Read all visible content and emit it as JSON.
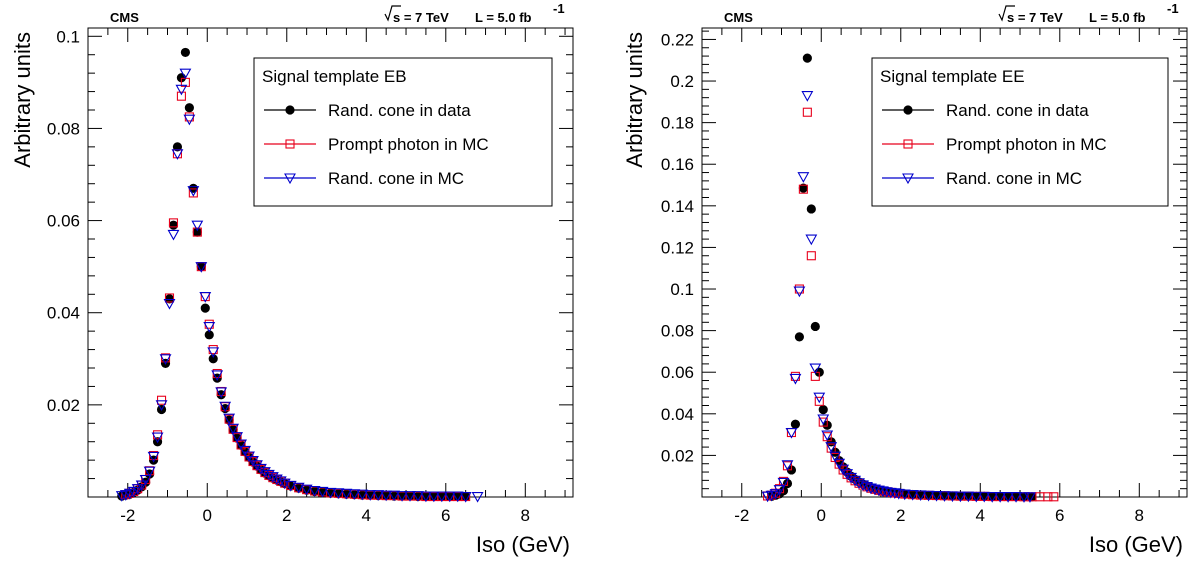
{
  "chart_data": [
    {
      "type": "scatter",
      "experiment_label": "CMS",
      "energy_label": "s = 7 TeV",
      "lumi_label": "L = 5.0 fb",
      "lumi_exponent": "-1",
      "xlabel": "Iso (GeV)",
      "ylabel": "Arbitrary units",
      "xlim": [
        -3,
        9.2
      ],
      "ylim": [
        0,
        0.1018
      ],
      "xticks": [
        -2,
        0,
        2,
        4,
        6,
        8
      ],
      "yticks": [
        0.02,
        0.04,
        0.06,
        0.08,
        0.1
      ],
      "ytick_labels": [
        "0.02",
        "0.04",
        "0.06",
        "0.08",
        "0.1"
      ],
      "xtick_labels": [
        "-2",
        "0",
        "2",
        "4",
        "6",
        "8"
      ],
      "legend_title": "Signal template EB",
      "legend_position": "top-right",
      "series": [
        {
          "name": "Rand. cone in data",
          "marker": "circle",
          "color": "#000000",
          "x": [
            -2.15,
            -2.05,
            -1.95,
            -1.85,
            -1.75,
            -1.65,
            -1.55,
            -1.45,
            -1.35,
            -1.25,
            -1.15,
            -1.05,
            -0.95,
            -0.85,
            -0.75,
            -0.65,
            -0.55,
            -0.45,
            -0.35,
            -0.25,
            -0.15,
            -0.05,
            0.05,
            0.15,
            0.25,
            0.35,
            0.45,
            0.55,
            0.65,
            0.75,
            0.85,
            0.95,
            1.05,
            1.15,
            1.25,
            1.35,
            1.45,
            1.55,
            1.65,
            1.75,
            1.85,
            1.95,
            2.1,
            2.3,
            2.5,
            2.7,
            2.9,
            3.1,
            3.3,
            3.5,
            3.7,
            3.9,
            4.1,
            4.3,
            4.5,
            4.7,
            4.9,
            5.1,
            5.3,
            5.5,
            5.7,
            5.9,
            6.1,
            6.3,
            6.5
          ],
          "y": [
            0.0002,
            0.0004,
            0.0006,
            0.001,
            0.0015,
            0.0022,
            0.0032,
            0.005,
            0.008,
            0.012,
            0.019,
            0.029,
            0.043,
            0.059,
            0.076,
            0.091,
            0.0965,
            0.0845,
            0.067,
            0.0575,
            0.05,
            0.041,
            0.0352,
            0.03,
            0.0258,
            0.0222,
            0.0192,
            0.0167,
            0.0146,
            0.0128,
            0.0112,
            0.0098,
            0.0086,
            0.0076,
            0.0067,
            0.0059,
            0.0052,
            0.0046,
            0.0041,
            0.0037,
            0.0033,
            0.0029,
            0.0024,
            0.0019,
            0.0015,
            0.0012,
            0.001,
            0.0008,
            0.0007,
            0.0006,
            0.0005,
            0.0004,
            0.0004,
            0.0003,
            0.0003,
            0.0002,
            0.0002,
            0.0002,
            0.0001,
            0.0001,
            0.0001,
            0.0001,
            0.0001,
            0.0001,
            0.0001
          ]
        },
        {
          "name": "Prompt photon in MC",
          "marker": "square",
          "color": "#e8001c",
          "x": [
            -2.05,
            -1.95,
            -1.85,
            -1.75,
            -1.65,
            -1.55,
            -1.45,
            -1.35,
            -1.25,
            -1.15,
            -1.05,
            -0.95,
            -0.85,
            -0.75,
            -0.65,
            -0.55,
            -0.45,
            -0.35,
            -0.25,
            -0.15,
            -0.05,
            0.05,
            0.15,
            0.25,
            0.35,
            0.45,
            0.55,
            0.65,
            0.75,
            0.85,
            0.95,
            1.05,
            1.15,
            1.25,
            1.35,
            1.45,
            1.55,
            1.65,
            1.75,
            1.85,
            1.95,
            2.1,
            2.3,
            2.5,
            2.7,
            2.9,
            3.1,
            3.3,
            3.5,
            3.7,
            3.9,
            4.1,
            4.3,
            4.5,
            4.7,
            4.9,
            5.1,
            5.3,
            5.5,
            5.7,
            5.9,
            6.1,
            6.3,
            6.5
          ],
          "y": [
            0.0005,
            0.0008,
            0.0012,
            0.0018,
            0.0026,
            0.0038,
            0.0057,
            0.009,
            0.0135,
            0.021,
            0.0302,
            0.0432,
            0.0595,
            0.0745,
            0.087,
            0.09,
            0.0825,
            0.066,
            0.0575,
            0.05,
            0.0435,
            0.0375,
            0.032,
            0.0268,
            0.0229,
            0.0196,
            0.0169,
            0.0147,
            0.0129,
            0.0113,
            0.0099,
            0.0087,
            0.0077,
            0.0068,
            0.006,
            0.0053,
            0.0047,
            0.0042,
            0.0038,
            0.0034,
            0.003,
            0.0025,
            0.002,
            0.0016,
            0.0013,
            0.0011,
            0.0009,
            0.0008,
            0.0007,
            0.0006,
            0.0005,
            0.0004,
            0.0004,
            0.0003,
            0.0003,
            0.0002,
            0.0002,
            0.0002,
            0.0001,
            0.0001,
            0.0001,
            0.0001,
            0.0001,
            0.0001
          ]
        },
        {
          "name": "Rand. cone in MC",
          "marker": "triangle-down",
          "color": "#0000cc",
          "x": [
            -2.15,
            -2.05,
            -1.95,
            -1.85,
            -1.75,
            -1.65,
            -1.55,
            -1.45,
            -1.35,
            -1.25,
            -1.15,
            -1.05,
            -0.95,
            -0.85,
            -0.75,
            -0.65,
            -0.55,
            -0.45,
            -0.35,
            -0.25,
            -0.15,
            -0.05,
            0.05,
            0.15,
            0.25,
            0.35,
            0.45,
            0.55,
            0.65,
            0.75,
            0.85,
            0.95,
            1.05,
            1.15,
            1.25,
            1.35,
            1.45,
            1.55,
            1.65,
            1.75,
            1.85,
            1.95,
            2.1,
            2.3,
            2.5,
            2.7,
            2.9,
            3.1,
            3.3,
            3.5,
            3.7,
            3.9,
            4.1,
            4.3,
            4.5,
            4.7,
            4.9,
            5.1,
            5.3,
            5.5,
            5.7,
            5.9,
            6.1,
            6.3,
            6.5,
            6.8
          ],
          "y": [
            0.0003,
            0.0005,
            0.0008,
            0.0012,
            0.0018,
            0.0026,
            0.0038,
            0.0056,
            0.0088,
            0.013,
            0.02,
            0.03,
            0.042,
            0.057,
            0.0745,
            0.0885,
            0.092,
            0.082,
            0.0665,
            0.059,
            0.05,
            0.0435,
            0.037,
            0.0315,
            0.0265,
            0.0228,
            0.0197,
            0.0171,
            0.0149,
            0.0131,
            0.0115,
            0.0101,
            0.0089,
            0.0079,
            0.007,
            0.0062,
            0.0055,
            0.0049,
            0.0044,
            0.0039,
            0.0035,
            0.003,
            0.0025,
            0.0021,
            0.0017,
            0.0014,
            0.0012,
            0.001,
            0.0009,
            0.0008,
            0.0007,
            0.0006,
            0.0005,
            0.0005,
            0.0004,
            0.0004,
            0.0003,
            0.0003,
            0.0003,
            0.0002,
            0.0002,
            0.0002,
            0.0002,
            0.0002,
            0.0001,
            0.0001
          ]
        }
      ]
    },
    {
      "type": "scatter",
      "experiment_label": "CMS",
      "energy_label": "s = 7 TeV",
      "lumi_label": "L = 5.0 fb",
      "lumi_exponent": "-1",
      "xlabel": "Iso (GeV)",
      "ylabel": "Arbitrary units",
      "xlim": [
        -3,
        9.2
      ],
      "ylim": [
        0,
        0.2255
      ],
      "xticks": [
        -2,
        0,
        2,
        4,
        6,
        8
      ],
      "yticks": [
        0.02,
        0.04,
        0.06,
        0.08,
        0.1,
        0.12,
        0.14,
        0.16,
        0.18,
        0.2,
        0.22
      ],
      "ytick_labels": [
        "0.02",
        "0.04",
        "0.06",
        "0.08",
        "0.1",
        "0.12",
        "0.14",
        "0.16",
        "0.18",
        "0.2",
        "0.22"
      ],
      "xtick_labels": [
        "-2",
        "0",
        "2",
        "4",
        "6",
        "8"
      ],
      "legend_title": "Signal template EE",
      "legend_position": "top-right",
      "series": [
        {
          "name": "Rand. cone in data",
          "marker": "circle",
          "color": "#000000",
          "x": [
            -1.25,
            -1.15,
            -1.05,
            -0.95,
            -0.85,
            -0.75,
            -0.65,
            -0.55,
            -0.45,
            -0.35,
            -0.25,
            -0.15,
            -0.05,
            0.05,
            0.15,
            0.25,
            0.35,
            0.45,
            0.55,
            0.65,
            0.75,
            0.85,
            0.95,
            1.05,
            1.15,
            1.25,
            1.35,
            1.45,
            1.55,
            1.65,
            1.75,
            1.85,
            1.95,
            2.1,
            2.3,
            2.5,
            2.7,
            2.9,
            3.1,
            3.3,
            3.5,
            3.7,
            3.9,
            4.1,
            4.3,
            4.5,
            4.7,
            4.9,
            5.1,
            5.3
          ],
          "y": [
            0.0003,
            0.0008,
            0.0015,
            0.003,
            0.0065,
            0.013,
            0.035,
            0.077,
            0.1485,
            0.211,
            0.1385,
            0.082,
            0.06,
            0.042,
            0.0345,
            0.0265,
            0.0215,
            0.0175,
            0.0145,
            0.012,
            0.01,
            0.0085,
            0.0072,
            0.0062,
            0.0053,
            0.0046,
            0.004,
            0.0035,
            0.003,
            0.0027,
            0.0023,
            0.002,
            0.0018,
            0.0015,
            0.0012,
            0.001,
            0.0008,
            0.0007,
            0.0006,
            0.0005,
            0.0004,
            0.0004,
            0.0003,
            0.0003,
            0.0002,
            0.0002,
            0.0002,
            0.0001,
            0.0001,
            0.0001
          ]
        },
        {
          "name": "Prompt photon in MC",
          "marker": "square",
          "color": "#e8001c",
          "x": [
            -1.35,
            -1.25,
            -1.15,
            -1.05,
            -0.95,
            -0.85,
            -0.75,
            -0.65,
            -0.55,
            -0.45,
            -0.35,
            -0.25,
            -0.15,
            -0.05,
            0.05,
            0.15,
            0.25,
            0.35,
            0.45,
            0.55,
            0.65,
            0.75,
            0.85,
            0.95,
            1.05,
            1.15,
            1.25,
            1.35,
            1.45,
            1.55,
            1.65,
            1.75,
            1.85,
            1.95,
            2.1,
            2.3,
            2.5,
            2.7,
            2.9,
            3.1,
            3.3,
            3.5,
            3.7,
            3.9,
            4.1,
            4.3,
            4.5,
            4.7,
            4.9,
            5.1,
            5.3,
            5.5,
            5.7,
            5.85
          ],
          "y": [
            0.0005,
            0.0009,
            0.0018,
            0.004,
            0.0075,
            0.015,
            0.031,
            0.058,
            0.1,
            0.148,
            0.185,
            0.116,
            0.058,
            0.046,
            0.036,
            0.029,
            0.0235,
            0.019,
            0.0158,
            0.013,
            0.0109,
            0.0092,
            0.0078,
            0.0066,
            0.0057,
            0.0049,
            0.0042,
            0.0037,
            0.0032,
            0.0028,
            0.0025,
            0.0022,
            0.0019,
            0.0017,
            0.0014,
            0.0011,
            0.0009,
            0.0008,
            0.0007,
            0.0006,
            0.0005,
            0.0004,
            0.0004,
            0.0003,
            0.0003,
            0.0002,
            0.0002,
            0.0002,
            0.0002,
            0.0001,
            0.0001,
            0.0001,
            0.0001,
            0.0001
          ]
        },
        {
          "name": "Rand. cone in MC",
          "marker": "triangle-down",
          "color": "#0000cc",
          "x": [
            -1.35,
            -1.25,
            -1.15,
            -1.05,
            -0.95,
            -0.85,
            -0.75,
            -0.65,
            -0.55,
            -0.45,
            -0.35,
            -0.25,
            -0.15,
            -0.05,
            0.05,
            0.15,
            0.25,
            0.35,
            0.45,
            0.55,
            0.65,
            0.75,
            0.85,
            0.95,
            1.05,
            1.15,
            1.25,
            1.35,
            1.45,
            1.55,
            1.65,
            1.75,
            1.85,
            1.95,
            2.1,
            2.3,
            2.5,
            2.7,
            2.9,
            3.1,
            3.3,
            3.5,
            3.7,
            3.9,
            4.1,
            4.3,
            4.5,
            4.7,
            4.9,
            5.1,
            5.25
          ],
          "y": [
            0.0004,
            0.0008,
            0.0016,
            0.0035,
            0.007,
            0.0155,
            0.031,
            0.057,
            0.099,
            0.154,
            0.193,
            0.124,
            0.062,
            0.048,
            0.0375,
            0.0298,
            0.0242,
            0.0196,
            0.0162,
            0.0134,
            0.0112,
            0.0094,
            0.008,
            0.0068,
            0.0058,
            0.005,
            0.0043,
            0.0038,
            0.0033,
            0.0029,
            0.0025,
            0.0022,
            0.002,
            0.0017,
            0.0014,
            0.0012,
            0.001,
            0.0008,
            0.0007,
            0.0006,
            0.0005,
            0.0004,
            0.0004,
            0.0003,
            0.0003,
            0.0002,
            0.0002,
            0.0002,
            0.0002,
            0.0001,
            0.0001
          ]
        }
      ]
    }
  ]
}
